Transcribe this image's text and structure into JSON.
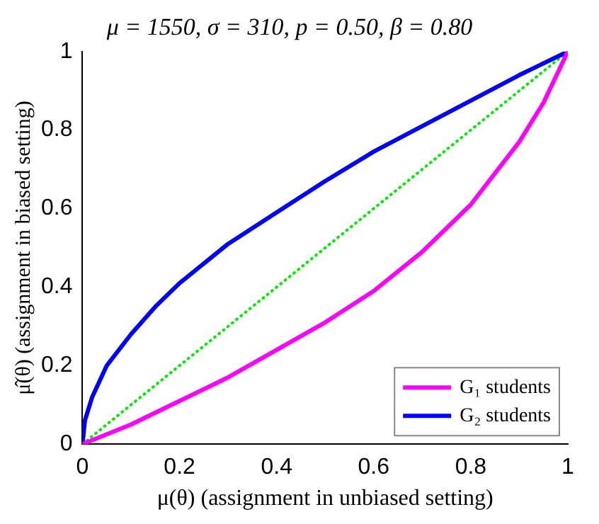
{
  "chart_data": {
    "type": "line",
    "title": "μ = 1550, σ = 310, p = 0.50, β = 0.80",
    "xlabel": "μ(θ) (assignment in unbiased setting)",
    "ylabel": "μ̂(θ) (assignment in biased setting)",
    "xlim": [
      0,
      1
    ],
    "ylim": [
      0,
      1
    ],
    "xticks": [
      0,
      0.2,
      0.4,
      0.6,
      0.8,
      1
    ],
    "yticks": [
      0,
      0.2,
      0.4,
      0.6,
      0.8,
      1
    ],
    "grid": false,
    "legend": "bottom right",
    "marker": "none",
    "series": [
      {
        "name": "G₁ students",
        "color": "#ff00ff",
        "line_style": "solid",
        "x": [
          0,
          0.1,
          0.2,
          0.3,
          0.4,
          0.5,
          0.6,
          0.7,
          0.8,
          0.9,
          0.95,
          1
        ],
        "values": [
          0,
          0.05,
          0.11,
          0.17,
          0.24,
          0.31,
          0.39,
          0.49,
          0.61,
          0.77,
          0.87,
          1
        ]
      },
      {
        "name": "G₂ students",
        "color": "#0000ff",
        "line_style": "solid",
        "x": [
          0,
          0.005,
          0.02,
          0.05,
          0.1,
          0.15,
          0.2,
          0.3,
          0.4,
          0.5,
          0.6,
          0.7,
          0.8,
          0.9,
          1
        ],
        "values": [
          0,
          0.06,
          0.12,
          0.2,
          0.28,
          0.35,
          0.41,
          0.51,
          0.59,
          0.67,
          0.745,
          0.81,
          0.875,
          0.94,
          1
        ]
      },
      {
        "color": "#00ee00",
        "line_style": "dotted",
        "x": [
          0,
          1
        ],
        "values": [
          0,
          1
        ]
      }
    ]
  }
}
